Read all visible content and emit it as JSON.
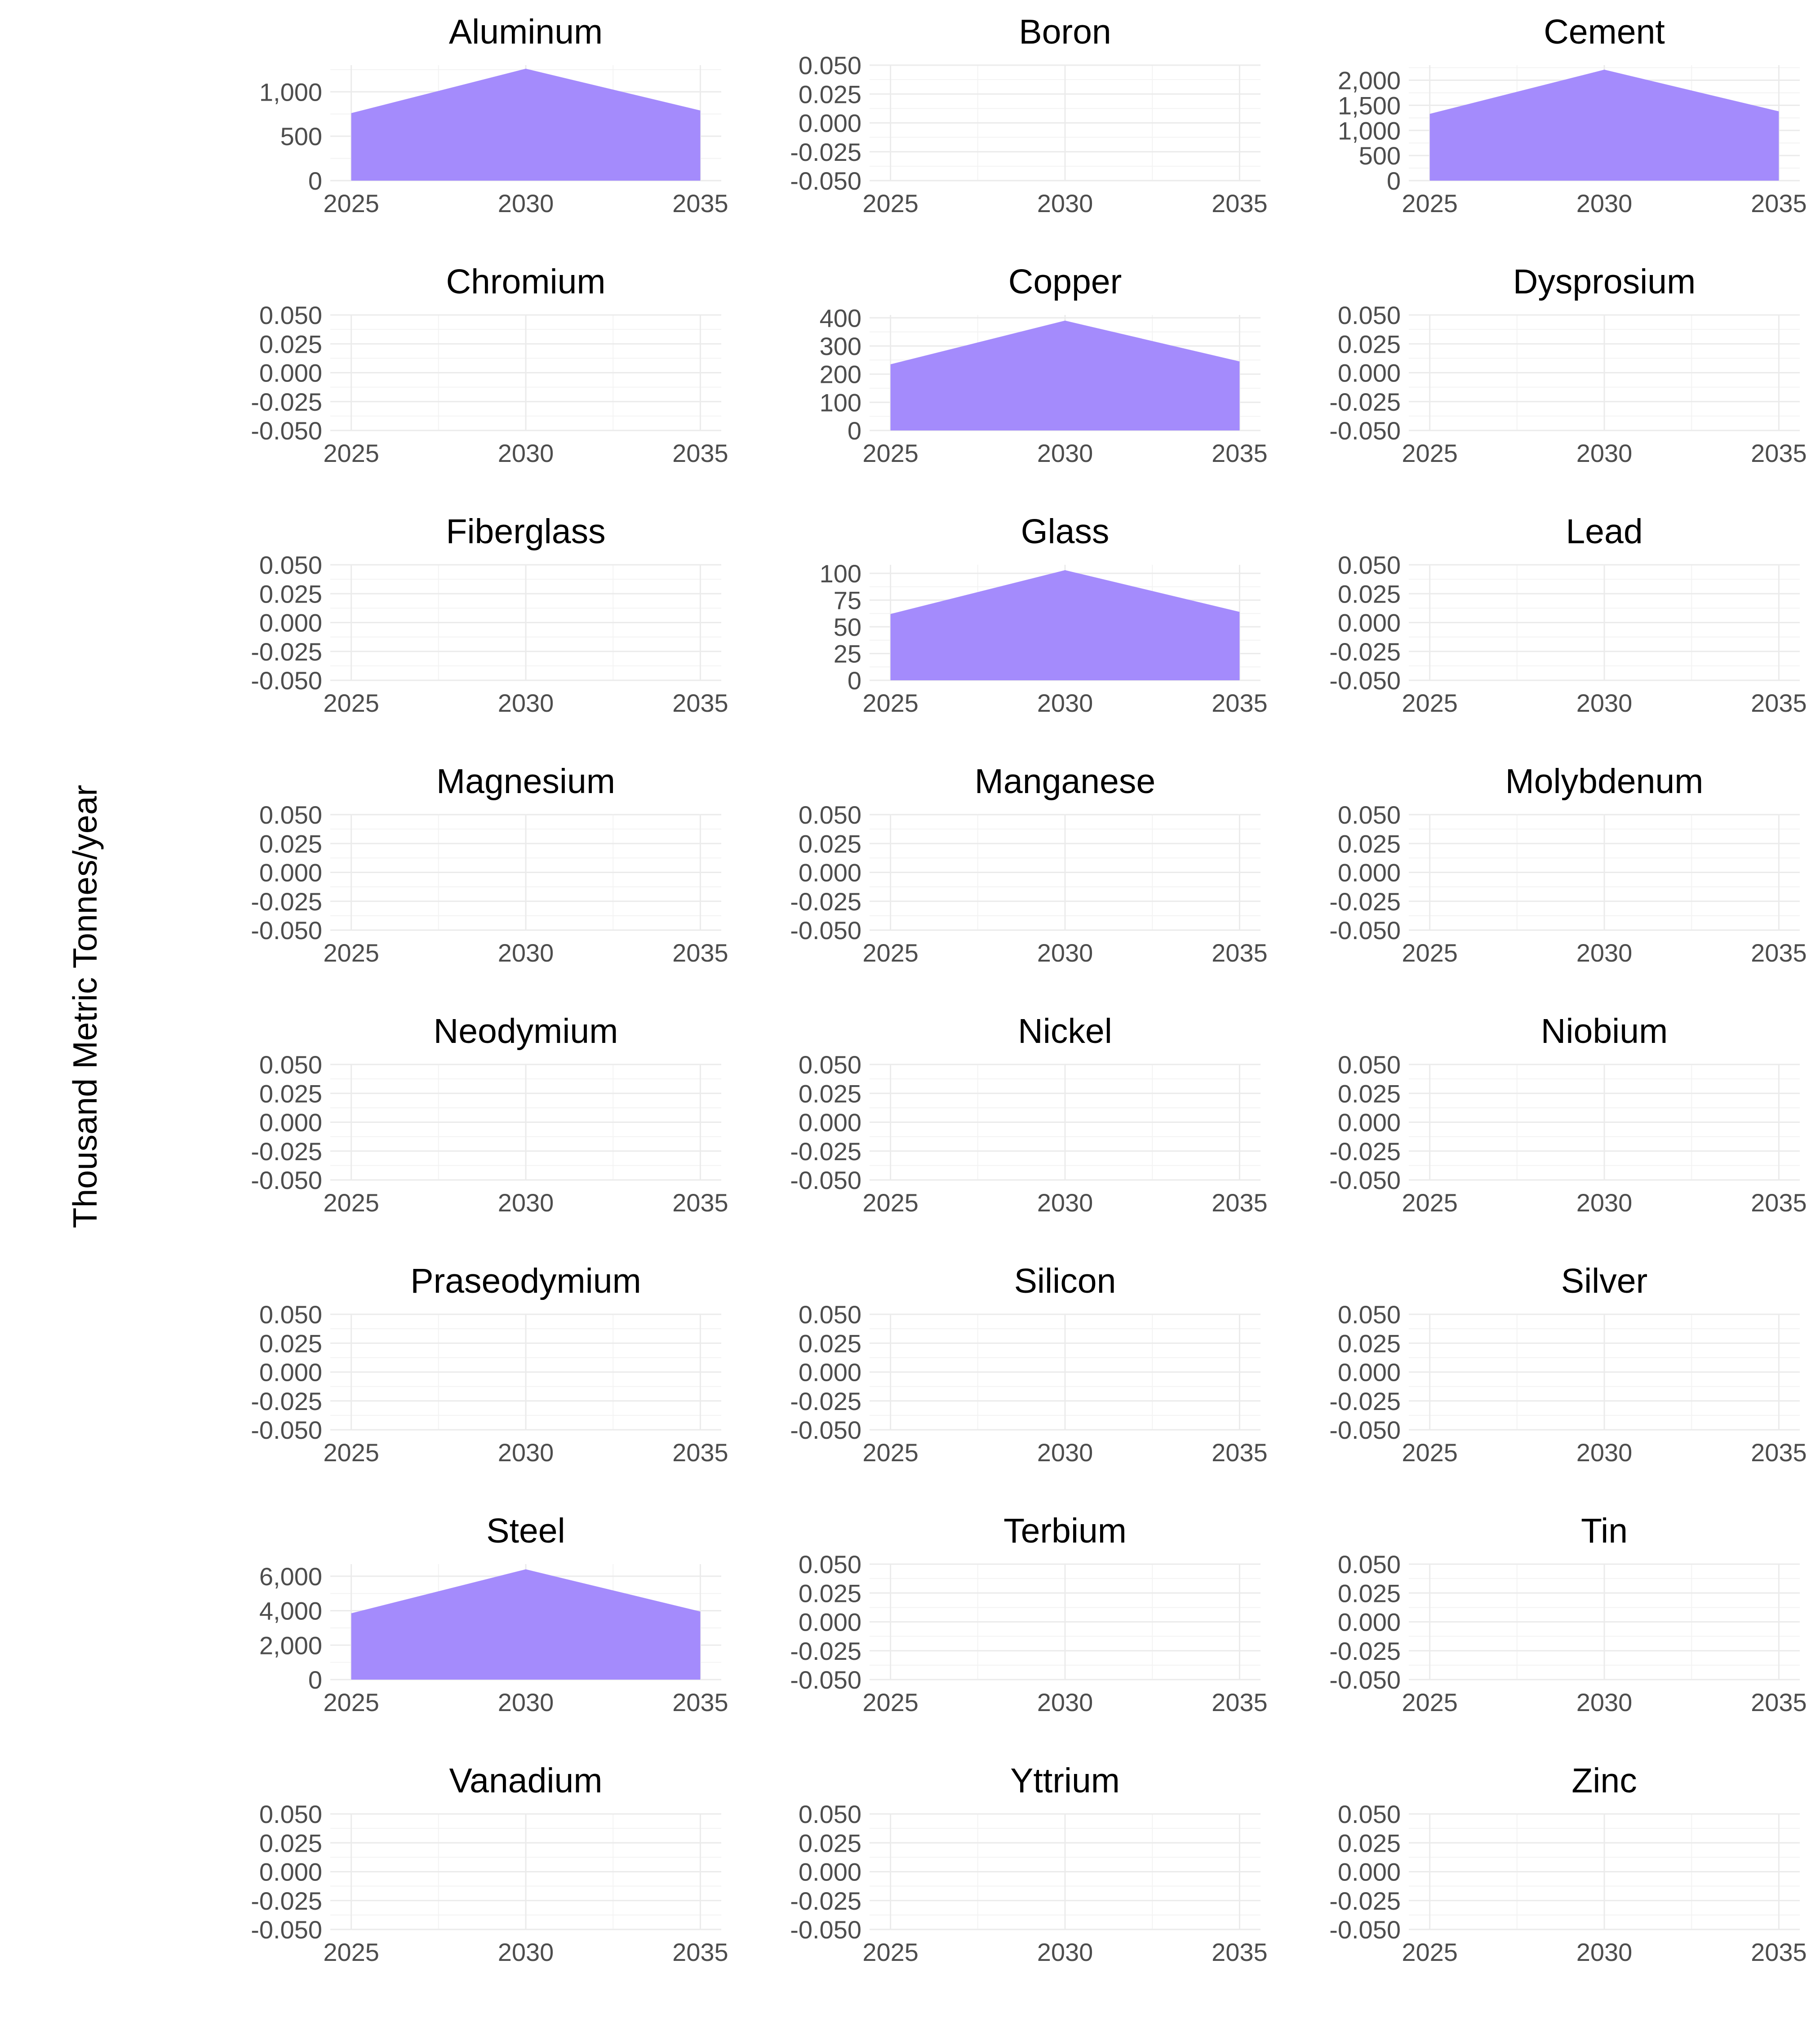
{
  "chart_data": {
    "type": "area",
    "ylabel": "Thousand Metric Tonnes/year",
    "xlabel": "",
    "fill_color": "#a48bfc",
    "grid": true,
    "x": [
      2025,
      2030,
      2035
    ],
    "x_ticks": [
      "2025",
      "2030",
      "2035"
    ],
    "xlim": [
      2024.4,
      2035.6
    ],
    "facets": [
      {
        "name": "Aluminum",
        "values": [
          760,
          1260,
          790
        ],
        "ylim": [
          0,
          1300
        ],
        "y_ticks": [
          0,
          500,
          1000
        ],
        "y_tick_labels": [
          "0",
          "500",
          "1,000"
        ]
      },
      {
        "name": "Boron",
        "values": null,
        "ylim": [
          -0.05,
          0.05
        ],
        "y_ticks": [
          -0.05,
          -0.025,
          0,
          0.025,
          0.05
        ],
        "y_tick_labels": [
          "-0.050",
          "-0.025",
          "0.000",
          "0.025",
          "0.050"
        ]
      },
      {
        "name": "Cement",
        "values": [
          1330,
          2210,
          1380
        ],
        "ylim": [
          0,
          2300
        ],
        "y_ticks": [
          0,
          500,
          1000,
          1500,
          2000
        ],
        "y_tick_labels": [
          "0",
          "500",
          "1,000",
          "1,500",
          "2,000"
        ]
      },
      {
        "name": "Chromium",
        "values": null,
        "ylim": [
          -0.05,
          0.05
        ],
        "y_ticks": [
          -0.05,
          -0.025,
          0,
          0.025,
          0.05
        ],
        "y_tick_labels": [
          "-0.050",
          "-0.025",
          "0.000",
          "0.025",
          "0.050"
        ]
      },
      {
        "name": "Copper",
        "values": [
          235,
          390,
          245
        ],
        "ylim": [
          0,
          410
        ],
        "y_ticks": [
          0,
          100,
          200,
          300,
          400
        ],
        "y_tick_labels": [
          "0",
          "100",
          "200",
          "300",
          "400"
        ]
      },
      {
        "name": "Dysprosium",
        "values": null,
        "ylim": [
          -0.05,
          0.05
        ],
        "y_ticks": [
          -0.05,
          -0.025,
          0,
          0.025,
          0.05
        ],
        "y_tick_labels": [
          "-0.050",
          "-0.025",
          "0.000",
          "0.025",
          "0.050"
        ]
      },
      {
        "name": "Fiberglass",
        "values": null,
        "ylim": [
          -0.05,
          0.05
        ],
        "y_ticks": [
          -0.05,
          -0.025,
          0,
          0.025,
          0.05
        ],
        "y_tick_labels": [
          "-0.050",
          "-0.025",
          "0.000",
          "0.025",
          "0.050"
        ]
      },
      {
        "name": "Glass",
        "values": [
          62,
          103,
          64
        ],
        "ylim": [
          0,
          108
        ],
        "y_ticks": [
          0,
          25,
          50,
          75,
          100
        ],
        "y_tick_labels": [
          "0",
          "25",
          "50",
          "75",
          "100"
        ]
      },
      {
        "name": "Lead",
        "values": null,
        "ylim": [
          -0.05,
          0.05
        ],
        "y_ticks": [
          -0.05,
          -0.025,
          0,
          0.025,
          0.05
        ],
        "y_tick_labels": [
          "-0.050",
          "-0.025",
          "0.000",
          "0.025",
          "0.050"
        ]
      },
      {
        "name": "Magnesium",
        "values": null,
        "ylim": [
          -0.05,
          0.05
        ],
        "y_ticks": [
          -0.05,
          -0.025,
          0,
          0.025,
          0.05
        ],
        "y_tick_labels": [
          "-0.050",
          "-0.025",
          "0.000",
          "0.025",
          "0.050"
        ]
      },
      {
        "name": "Manganese",
        "values": null,
        "ylim": [
          -0.05,
          0.05
        ],
        "y_ticks": [
          -0.05,
          -0.025,
          0,
          0.025,
          0.05
        ],
        "y_tick_labels": [
          "-0.050",
          "-0.025",
          "0.000",
          "0.025",
          "0.050"
        ]
      },
      {
        "name": "Molybdenum",
        "values": null,
        "ylim": [
          -0.05,
          0.05
        ],
        "y_ticks": [
          -0.05,
          -0.025,
          0,
          0.025,
          0.05
        ],
        "y_tick_labels": [
          "-0.050",
          "-0.025",
          "0.000",
          "0.025",
          "0.050"
        ]
      },
      {
        "name": "Neodymium",
        "values": null,
        "ylim": [
          -0.05,
          0.05
        ],
        "y_ticks": [
          -0.05,
          -0.025,
          0,
          0.025,
          0.05
        ],
        "y_tick_labels": [
          "-0.050",
          "-0.025",
          "0.000",
          "0.025",
          "0.050"
        ]
      },
      {
        "name": "Nickel",
        "values": null,
        "ylim": [
          -0.05,
          0.05
        ],
        "y_ticks": [
          -0.05,
          -0.025,
          0,
          0.025,
          0.05
        ],
        "y_tick_labels": [
          "-0.050",
          "-0.025",
          "0.000",
          "0.025",
          "0.050"
        ]
      },
      {
        "name": "Niobium",
        "values": null,
        "ylim": [
          -0.05,
          0.05
        ],
        "y_ticks": [
          -0.05,
          -0.025,
          0,
          0.025,
          0.05
        ],
        "y_tick_labels": [
          "-0.050",
          "-0.025",
          "0.000",
          "0.025",
          "0.050"
        ]
      },
      {
        "name": "Praseodymium",
        "values": null,
        "ylim": [
          -0.05,
          0.05
        ],
        "y_ticks": [
          -0.05,
          -0.025,
          0,
          0.025,
          0.05
        ],
        "y_tick_labels": [
          "-0.050",
          "-0.025",
          "0.000",
          "0.025",
          "0.050"
        ]
      },
      {
        "name": "Silicon",
        "values": null,
        "ylim": [
          -0.05,
          0.05
        ],
        "y_ticks": [
          -0.05,
          -0.025,
          0,
          0.025,
          0.05
        ],
        "y_tick_labels": [
          "-0.050",
          "-0.025",
          "0.000",
          "0.025",
          "0.050"
        ]
      },
      {
        "name": "Silver",
        "values": null,
        "ylim": [
          -0.05,
          0.05
        ],
        "y_ticks": [
          -0.05,
          -0.025,
          0,
          0.025,
          0.05
        ],
        "y_tick_labels": [
          "-0.050",
          "-0.025",
          "0.000",
          "0.025",
          "0.050"
        ]
      },
      {
        "name": "Steel",
        "values": [
          3850,
          6400,
          3950
        ],
        "ylim": [
          0,
          6700
        ],
        "y_ticks": [
          0,
          2000,
          4000,
          6000
        ],
        "y_tick_labels": [
          "0",
          "2,000",
          "4,000",
          "6,000"
        ]
      },
      {
        "name": "Terbium",
        "values": null,
        "ylim": [
          -0.05,
          0.05
        ],
        "y_ticks": [
          -0.05,
          -0.025,
          0,
          0.025,
          0.05
        ],
        "y_tick_labels": [
          "-0.050",
          "-0.025",
          "0.000",
          "0.025",
          "0.050"
        ]
      },
      {
        "name": "Tin",
        "values": null,
        "ylim": [
          -0.05,
          0.05
        ],
        "y_ticks": [
          -0.05,
          -0.025,
          0,
          0.025,
          0.05
        ],
        "y_tick_labels": [
          "-0.050",
          "-0.025",
          "0.000",
          "0.025",
          "0.050"
        ]
      },
      {
        "name": "Vanadium",
        "values": null,
        "ylim": [
          -0.05,
          0.05
        ],
        "y_ticks": [
          -0.05,
          -0.025,
          0,
          0.025,
          0.05
        ],
        "y_tick_labels": [
          "-0.050",
          "-0.025",
          "0.000",
          "0.025",
          "0.050"
        ]
      },
      {
        "name": "Yttrium",
        "values": null,
        "ylim": [
          -0.05,
          0.05
        ],
        "y_ticks": [
          -0.05,
          -0.025,
          0,
          0.025,
          0.05
        ],
        "y_tick_labels": [
          "-0.050",
          "-0.025",
          "0.000",
          "0.025",
          "0.050"
        ]
      },
      {
        "name": "Zinc",
        "values": null,
        "ylim": [
          -0.05,
          0.05
        ],
        "y_ticks": [
          -0.05,
          -0.025,
          0,
          0.025,
          0.05
        ],
        "y_tick_labels": [
          "-0.050",
          "-0.025",
          "0.000",
          "0.025",
          "0.050"
        ]
      }
    ]
  }
}
